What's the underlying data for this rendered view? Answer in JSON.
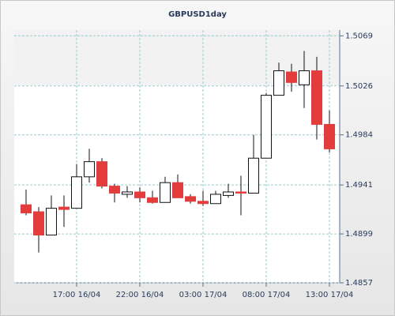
{
  "chart_data": {
    "type": "candlestick",
    "title": "GBPUSD1day",
    "categories": [
      null,
      null,
      null,
      null,
      "17:00 16/04",
      null,
      null,
      null,
      null,
      "22:00 16/04",
      null,
      null,
      null,
      null,
      "03:00 17/04",
      null,
      null,
      null,
      null,
      "08:00 17/04",
      null,
      null,
      null,
      null,
      "13:00 17/04"
    ],
    "open": [
      1.4924,
      1.4918,
      1.4898,
      1.4922,
      1.4921,
      1.4948,
      1.4961,
      1.494,
      1.4933,
      1.4935,
      1.493,
      1.4926,
      1.4943,
      1.4931,
      1.4927,
      1.4925,
      1.4932,
      1.4935,
      1.4934,
      1.4964,
      1.5018,
      1.5038,
      1.5027,
      1.5039,
      1.4993
    ],
    "high": [
      1.4937,
      1.4922,
      1.4932,
      1.4932,
      1.4959,
      1.4972,
      1.4964,
      1.4942,
      1.494,
      1.4939,
      1.4936,
      1.4948,
      1.495,
      1.4933,
      1.4936,
      1.4936,
      1.4942,
      1.4949,
      1.4984,
      1.502,
      1.5046,
      1.5045,
      1.5056,
      1.5051,
      1.5005
    ],
    "low": [
      1.4915,
      1.4883,
      1.4898,
      1.4905,
      1.4921,
      1.4943,
      1.4938,
      1.4926,
      1.493,
      1.4926,
      1.4925,
      1.4926,
      1.493,
      1.4925,
      1.4923,
      1.4925,
      1.493,
      1.4915,
      1.4934,
      1.4964,
      1.5018,
      1.5021,
      1.5007,
      1.498,
      1.4969
    ],
    "close": [
      1.4917,
      1.4898,
      1.4921,
      1.492,
      1.4948,
      1.4961,
      1.494,
      1.4934,
      1.4935,
      1.493,
      1.4926,
      1.4943,
      1.493,
      1.4927,
      1.4925,
      1.4933,
      1.4935,
      1.4934,
      1.4964,
      1.5018,
      1.5039,
      1.5029,
      1.5039,
      1.4993,
      1.4972
    ],
    "up_color": "#ffffff",
    "down_color": "#e23c3c",
    "ylim": [
      1.4857,
      1.5074
    ],
    "yticks": [
      1.4857,
      1.4899,
      1.4941,
      1.4984,
      1.5026,
      1.5069
    ],
    "grid": true
  }
}
